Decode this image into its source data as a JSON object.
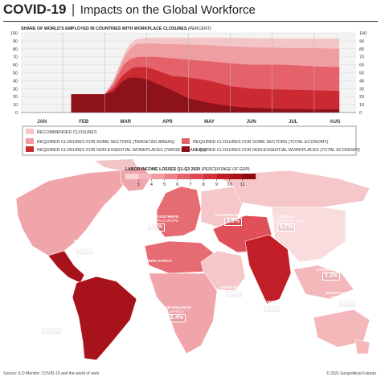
{
  "header": {
    "title_main": "COVID-19",
    "title_sep": "|",
    "title_rest": "Impacts on the Global Workforce"
  },
  "chart_data": {
    "type": "area",
    "title": "SHARE OF WORLD'S EMPLOYED IN COUNTRIES WITH WORKPLACE CLOSURES",
    "unit": "(PERCENT)",
    "x": [
      "JAN",
      "FEB",
      "MAR",
      "APR",
      "MAY",
      "JUN",
      "JUL",
      "AUG"
    ],
    "ylim": [
      0,
      100
    ],
    "yticks": [
      0,
      10,
      20,
      30,
      40,
      50,
      60,
      70,
      80,
      90,
      100
    ],
    "grid": true,
    "series": [
      {
        "name": "RECOMMENDED CLOSURES",
        "color": "#f4c5c7",
        "points": [
          [
            0,
            0
          ],
          [
            1.2,
            0
          ],
          [
            1.2,
            23
          ],
          [
            2.0,
            23
          ],
          [
            2.2,
            40
          ],
          [
            2.45,
            72
          ],
          [
            2.6,
            86
          ],
          [
            2.75,
            92
          ],
          [
            3.0,
            94
          ],
          [
            3.5,
            94
          ],
          [
            4.5,
            94
          ],
          [
            5.0,
            94
          ],
          [
            6.0,
            93
          ],
          [
            7.0,
            93
          ],
          [
            7.6,
            93
          ]
        ]
      },
      {
        "name": "REQUIRED CLOSURES FOR SOME SECTORS (TARGETED AREAS)",
        "color": "#ef9da1",
        "points": [
          [
            0,
            0
          ],
          [
            1.2,
            0
          ],
          [
            1.2,
            23
          ],
          [
            2.0,
            23
          ],
          [
            2.2,
            38
          ],
          [
            2.45,
            68
          ],
          [
            2.6,
            80
          ],
          [
            2.75,
            86
          ],
          [
            3.0,
            87
          ],
          [
            3.5,
            86
          ],
          [
            4.3,
            85
          ],
          [
            5.0,
            83
          ],
          [
            5.5,
            82
          ],
          [
            6.3,
            81
          ],
          [
            7.0,
            81
          ],
          [
            7.6,
            80
          ]
        ]
      },
      {
        "name": "REQUIRED CLOSURES FOR SOME SECTORS (TOTAL ECONOMY)",
        "color": "#e5626a",
        "points": [
          [
            0,
            0
          ],
          [
            1.2,
            0
          ],
          [
            1.2,
            23
          ],
          [
            2.0,
            23
          ],
          [
            2.2,
            35
          ],
          [
            2.45,
            60
          ],
          [
            2.6,
            67
          ],
          [
            2.8,
            70
          ],
          [
            3.2,
            70
          ],
          [
            3.7,
            68
          ],
          [
            4.3,
            65
          ],
          [
            5.0,
            62
          ],
          [
            5.5,
            60
          ],
          [
            6.3,
            60
          ],
          [
            7.0,
            58
          ],
          [
            7.6,
            57
          ]
        ]
      },
      {
        "name": "REQUIRED CLOSURES FOR NON-ESSENTIAL WORKPLACES (TARGETED AREAS)",
        "color": "#cc2a33",
        "points": [
          [
            0,
            0
          ],
          [
            1.2,
            0
          ],
          [
            1.2,
            23
          ],
          [
            2.0,
            23
          ],
          [
            2.2,
            30
          ],
          [
            2.4,
            45
          ],
          [
            2.55,
            52
          ],
          [
            2.7,
            57
          ],
          [
            3.0,
            57
          ],
          [
            3.3,
            52
          ],
          [
            3.6,
            46
          ],
          [
            4.0,
            44
          ],
          [
            4.5,
            40
          ],
          [
            5.0,
            33
          ],
          [
            5.5,
            30
          ],
          [
            6.0,
            29
          ],
          [
            7.0,
            28
          ],
          [
            7.6,
            27
          ]
        ]
      },
      {
        "name": "REQUIRED CLOSURES FOR NON-ESSENTIAL WORKPLACES (TOTAL ECONOMY)",
        "color": "#8e1219",
        "points": [
          [
            0,
            0
          ],
          [
            1.2,
            0
          ],
          [
            1.2,
            23
          ],
          [
            2.0,
            23
          ],
          [
            2.2,
            26
          ],
          [
            2.4,
            38
          ],
          [
            2.55,
            43
          ],
          [
            2.7,
            44
          ],
          [
            3.0,
            42
          ],
          [
            3.3,
            35
          ],
          [
            3.6,
            28
          ],
          [
            4.0,
            18
          ],
          [
            4.5,
            12
          ],
          [
            5.0,
            8
          ],
          [
            5.5,
            6
          ],
          [
            6.0,
            5
          ],
          [
            7.0,
            4
          ],
          [
            7.6,
            4
          ]
        ]
      }
    ]
  },
  "map": {
    "legend_title": "LABOR INCOME LOSSES Q1-Q3 2020",
    "legend_unit": "(PERCENTAGE OF GDP)",
    "legend_ticks": [
      "3",
      "4",
      "5",
      "6",
      "7",
      "8",
      "9",
      "10",
      "11"
    ],
    "legend_colors": [
      "#f8d4d5",
      "#f4b8bb",
      "#f09ca0",
      "#eb8087",
      "#e5636b",
      "#de4a53",
      "#d2323c",
      "#c21e28",
      "#a8121a",
      "#8a0c12"
    ],
    "regions": [
      {
        "name_a": "NORTHERN AMERICA",
        "name_b": "",
        "value": "5.5%",
        "color": "#f0a5aa"
      },
      {
        "name_a": "LATIN AMERICA",
        "name_b": "AND THE CARIBBEAN",
        "value": "10.1%",
        "color": "#a8121a"
      },
      {
        "name_a": "NORTHERN, SOUTHERN",
        "name_b": "AND WESTERN EUROPE",
        "value": "6.2%",
        "color": "#e66c73"
      },
      {
        "name_a": "EASTERN EUROPE",
        "name_b": "",
        "value": "3.9%",
        "color": "#f6c7c9"
      },
      {
        "name_a": "CENTRAL",
        "name_b": "AND WESTERN ASIA",
        "value": "6.7%",
        "color": "#df5059"
      },
      {
        "name_a": "NORTHERN AFRICA",
        "name_b": "",
        "value": "",
        "color": "#e66c73"
      },
      {
        "name_a": "ARAB STATES",
        "name_b": "",
        "value": "3.4%",
        "color": "#f6c7c9"
      },
      {
        "name_a": "SUB-SAHARAN",
        "name_b": "AFRICA",
        "value": "5.4%",
        "color": "#f0a5aa"
      },
      {
        "name_a": "SOUTHERN ASIA",
        "name_b": "",
        "value": "8.1%",
        "color": "#c21e28"
      },
      {
        "name_a": "EASTERN ASIA",
        "name_b": "",
        "value": "2.3%",
        "color": "#f9dcdd"
      },
      {
        "name_a": "SOUTH-EASTERN ASIA",
        "name_b": "AND THE PACIFIC",
        "value": "3.9%",
        "color": "#f4b8bb"
      }
    ]
  },
  "footer": {
    "source": "Source: ILO Monitor: COVID-19 and the world of work",
    "copyright": "© 2021 Geopolitical Futures"
  }
}
